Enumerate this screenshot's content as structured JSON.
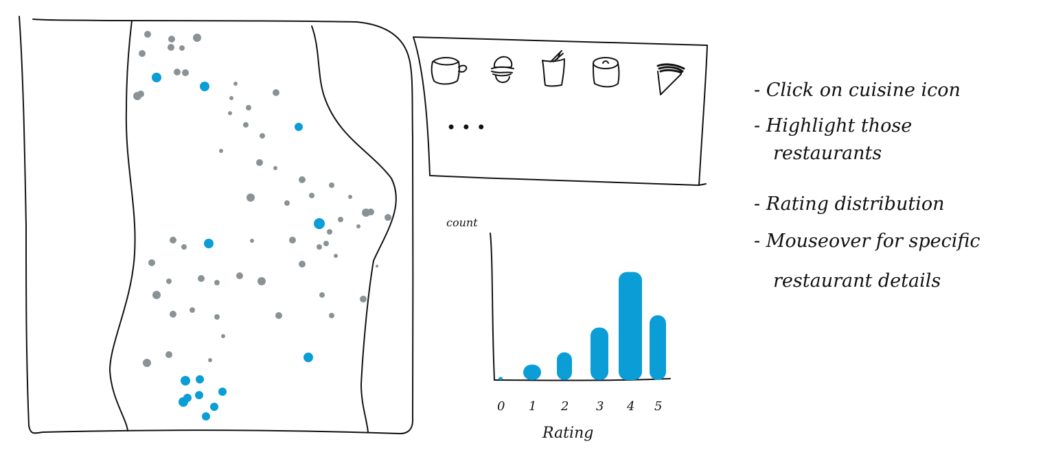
{
  "colors": {
    "ink": "#111111",
    "dot_default": "#8a9296",
    "dot_highlight": "#0a9dd6",
    "bar": "#0a9dd6"
  },
  "cuisine_panel": {
    "icons": [
      "cup-icon",
      "burger-icon",
      "noodle-box-icon",
      "can-icon",
      "cone-icon"
    ],
    "more_indicator": "• • •"
  },
  "notes": [
    "- Click on cuisine icon",
    "- Highlight those",
    "restaurants",
    "- Rating distribution",
    "- Mouseover for specific",
    "restaurant details"
  ],
  "chart_data": {
    "type": "bar",
    "xlabel": "Rating",
    "ylabel": "count",
    "categories": [
      "0",
      "1",
      "2",
      "3",
      "4",
      "5"
    ],
    "values": [
      0.5,
      2.5,
      4.5,
      8.5,
      17.5,
      10.5
    ],
    "ylim": [
      0,
      18
    ],
    "grid": false
  }
}
